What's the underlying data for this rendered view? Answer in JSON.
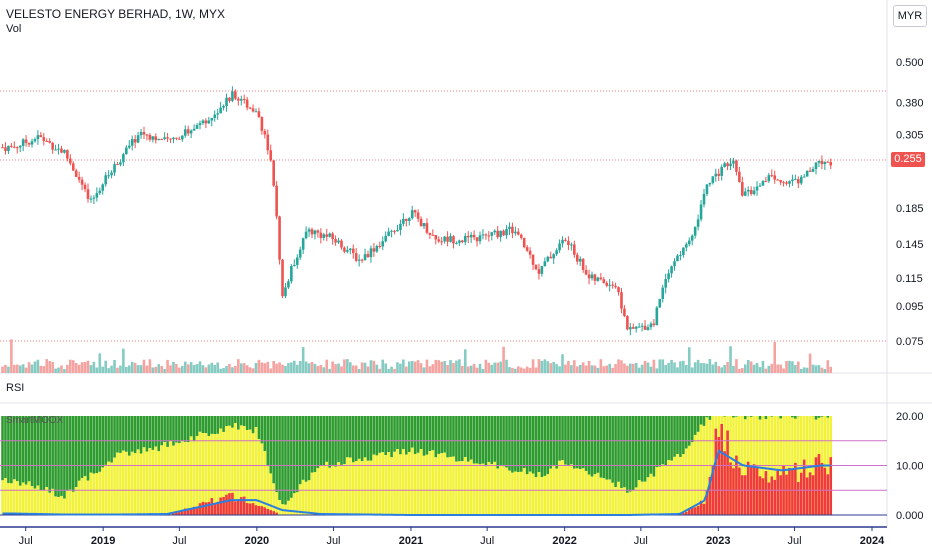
{
  "header": {
    "title": "VELESTO ENERGY BERHAD, 1W, MYX",
    "volume_label": "Vol",
    "currency_button": "MYR"
  },
  "price_panel": {
    "last_price": "0.255",
    "y_ticks": [
      "0.500",
      "0.380",
      "0.305",
      "0.255",
      "0.185",
      "0.145",
      "0.115",
      "0.095",
      "0.075"
    ]
  },
  "rsi_panel": {
    "title": "RSI",
    "indicator_name": "SmartMOOX",
    "y_ticks": [
      "20.00",
      "10.00",
      "0.000"
    ],
    "levels": [
      0,
      5,
      10,
      15,
      20
    ]
  },
  "x_axis": {
    "labels": [
      "Jul",
      "2019",
      "Jul",
      "2020",
      "Jul",
      "2021",
      "Jul",
      "2022",
      "Jul",
      "2023",
      "Jul",
      "2024"
    ]
  },
  "colors": {
    "up": "#26a69a",
    "down": "#ef5350",
    "vol_up": "#85cbc2",
    "vol_down": "#f5a3a1",
    "rsi_green": "#2e9b2e",
    "rsi_yellow": "#f2f23a",
    "rsi_red": "#ef3b3b",
    "rsi_line": "#2a7fe0",
    "level_line": "#d070c8"
  },
  "chart_data": {
    "type": "candlestick",
    "title": "VELESTO ENERGY BERHAD, 1W, MYX",
    "x_range": [
      "2018-06",
      "2023-09"
    ],
    "y_scale": "log",
    "price_keypoints": [
      {
        "date": "2018-06",
        "close": 0.28
      },
      {
        "date": "2018-08",
        "close": 0.3
      },
      {
        "date": "2018-10",
        "close": 0.27
      },
      {
        "date": "2018-12",
        "close": 0.19
      },
      {
        "date": "2019-02",
        "close": 0.25
      },
      {
        "date": "2019-04",
        "close": 0.31
      },
      {
        "date": "2019-06",
        "close": 0.29
      },
      {
        "date": "2019-09",
        "close": 0.33
      },
      {
        "date": "2019-11",
        "close": 0.4
      },
      {
        "date": "2020-01",
        "close": 0.36
      },
      {
        "date": "2020-02",
        "close": 0.26
      },
      {
        "date": "2020-03",
        "close": 0.1
      },
      {
        "date": "2020-05",
        "close": 0.16
      },
      {
        "date": "2020-07",
        "close": 0.15
      },
      {
        "date": "2020-09",
        "close": 0.13
      },
      {
        "date": "2020-11",
        "close": 0.15
      },
      {
        "date": "2021-01",
        "close": 0.18
      },
      {
        "date": "2021-03",
        "close": 0.15
      },
      {
        "date": "2021-06",
        "close": 0.15
      },
      {
        "date": "2021-09",
        "close": 0.16
      },
      {
        "date": "2021-11",
        "close": 0.12
      },
      {
        "date": "2022-01",
        "close": 0.15
      },
      {
        "date": "2022-03",
        "close": 0.115
      },
      {
        "date": "2022-05",
        "close": 0.11
      },
      {
        "date": "2022-06",
        "close": 0.08
      },
      {
        "date": "2022-08",
        "close": 0.085
      },
      {
        "date": "2022-09",
        "close": 0.12
      },
      {
        "date": "2022-11",
        "close": 0.15
      },
      {
        "date": "2022-12",
        "close": 0.21
      },
      {
        "date": "2023-02",
        "close": 0.26
      },
      {
        "date": "2023-03",
        "close": 0.2
      },
      {
        "date": "2023-05",
        "close": 0.23
      },
      {
        "date": "2023-07",
        "close": 0.22
      },
      {
        "date": "2023-09",
        "close": 0.255
      }
    ],
    "rsi_panel": {
      "ylim": [
        0,
        20
      ],
      "keypoints": [
        {
          "date": "2018-06",
          "yellow": 7,
          "red": 0,
          "line": 0.3
        },
        {
          "date": "2018-10",
          "yellow": 4,
          "red": 0,
          "line": 0.1
        },
        {
          "date": "2019-02",
          "yellow": 12,
          "red": 0,
          "line": 0.1
        },
        {
          "date": "2019-06",
          "yellow": 14,
          "red": 0,
          "line": 0.2
        },
        {
          "date": "2019-11",
          "yellow": 18,
          "red": 4,
          "line": 3
        },
        {
          "date": "2020-01",
          "yellow": 17,
          "red": 2,
          "line": 3
        },
        {
          "date": "2020-03",
          "yellow": 2,
          "red": 0,
          "line": 1
        },
        {
          "date": "2020-06",
          "yellow": 10,
          "red": 0,
          "line": 0.2
        },
        {
          "date": "2021-01",
          "yellow": 13,
          "red": 0,
          "line": 0
        },
        {
          "date": "2021-06",
          "yellow": 11,
          "red": 0,
          "line": 0
        },
        {
          "date": "2021-11",
          "yellow": 8,
          "red": 0,
          "line": 0
        },
        {
          "date": "2022-01",
          "yellow": 11,
          "red": 0,
          "line": 0
        },
        {
          "date": "2022-06",
          "yellow": 5,
          "red": 0,
          "line": 0
        },
        {
          "date": "2022-10",
          "yellow": 12,
          "red": 0,
          "line": 0.2
        },
        {
          "date": "2022-12",
          "yellow": 19,
          "red": 3,
          "line": 3
        },
        {
          "date": "2023-01",
          "yellow": 20,
          "red": 17,
          "line": 13
        },
        {
          "date": "2023-03",
          "yellow": 20,
          "red": 9,
          "line": 10
        },
        {
          "date": "2023-06",
          "yellow": 20,
          "red": 8,
          "line": 9
        },
        {
          "date": "2023-09",
          "yellow": 20,
          "red": 10,
          "line": 10
        }
      ]
    }
  }
}
